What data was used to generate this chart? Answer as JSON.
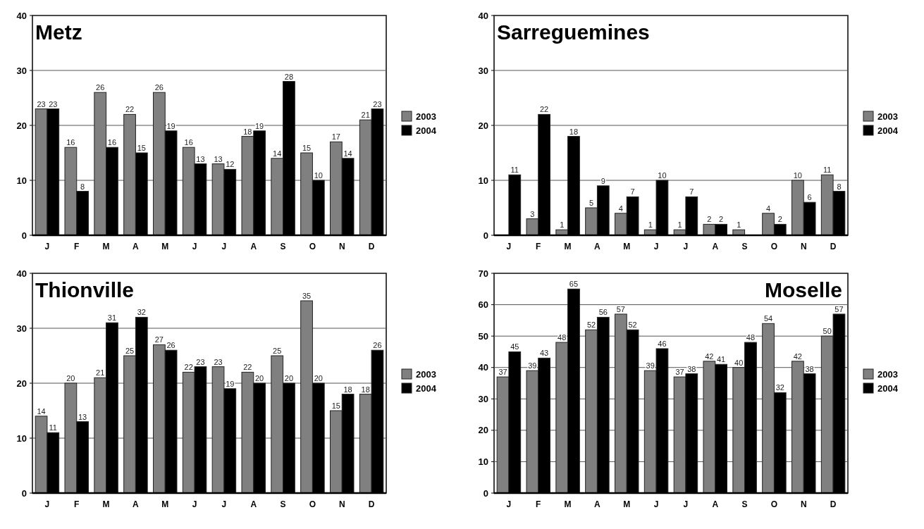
{
  "chart_data": [
    {
      "type": "bar",
      "title": "Metz",
      "categories": [
        "J",
        "F",
        "M",
        "A",
        "M",
        "J",
        "J",
        "A",
        "S",
        "O",
        "N",
        "D"
      ],
      "series": [
        {
          "name": "2003",
          "color": "#808080",
          "values": [
            23,
            16,
            26,
            22,
            26,
            16,
            13,
            18,
            14,
            15,
            17,
            21
          ]
        },
        {
          "name": "2004",
          "color": "#000000",
          "values": [
            23,
            8,
            16,
            15,
            19,
            13,
            12,
            19,
            28,
            10,
            14,
            23
          ]
        }
      ],
      "ylim": [
        0,
        40
      ],
      "yticks": [
        0,
        10,
        20,
        30,
        40
      ],
      "grid": "y",
      "legend": "right",
      "data_labels": true
    },
    {
      "type": "bar",
      "title": "Sarreguemines",
      "categories": [
        "J",
        "F",
        "M",
        "A",
        "M",
        "J",
        "J",
        "A",
        "S",
        "O",
        "N",
        "D"
      ],
      "series": [
        {
          "name": "2003",
          "color": "#808080",
          "values": [
            null,
            3,
            1,
            5,
            4,
            1,
            1,
            2,
            1,
            4,
            10,
            11
          ]
        },
        {
          "name": "2004",
          "color": "#000000",
          "values": [
            11,
            22,
            18,
            9,
            7,
            10,
            7,
            2,
            null,
            2,
            6,
            8
          ]
        }
      ],
      "ylim": [
        0,
        40
      ],
      "yticks": [
        0,
        10,
        20,
        30,
        40
      ],
      "grid": "y",
      "legend": "right",
      "data_labels": true
    },
    {
      "type": "bar",
      "title": "Thionville",
      "categories": [
        "J",
        "F",
        "M",
        "A",
        "M",
        "J",
        "J",
        "A",
        "S",
        "O",
        "N",
        "D"
      ],
      "series": [
        {
          "name": "2003",
          "color": "#808080",
          "values": [
            14,
            20,
            21,
            25,
            27,
            22,
            23,
            22,
            25,
            35,
            15,
            18
          ]
        },
        {
          "name": "2004",
          "color": "#000000",
          "values": [
            11,
            13,
            31,
            32,
            26,
            23,
            19,
            20,
            20,
            20,
            18,
            26
          ]
        }
      ],
      "ylim": [
        0,
        40
      ],
      "yticks": [
        0,
        10,
        20,
        30,
        40
      ],
      "grid": "y",
      "legend": "right",
      "data_labels": true
    },
    {
      "type": "bar",
      "title": "Moselle",
      "categories": [
        "J",
        "F",
        "M",
        "A",
        "M",
        "J",
        "J",
        "A",
        "S",
        "O",
        "N",
        "D"
      ],
      "series": [
        {
          "name": "2003",
          "color": "#808080",
          "values": [
            37,
            39,
            48,
            52,
            57,
            39,
            37,
            42,
            40,
            54,
            42,
            50
          ]
        },
        {
          "name": "2004",
          "color": "#000000",
          "values": [
            45,
            43,
            65,
            56,
            52,
            46,
            38,
            41,
            48,
            32,
            38,
            57
          ]
        }
      ],
      "ylim": [
        0,
        70
      ],
      "yticks": [
        0,
        10,
        20,
        30,
        40,
        50,
        60,
        70
      ],
      "grid": "y",
      "legend": "right",
      "data_labels": true
    }
  ]
}
